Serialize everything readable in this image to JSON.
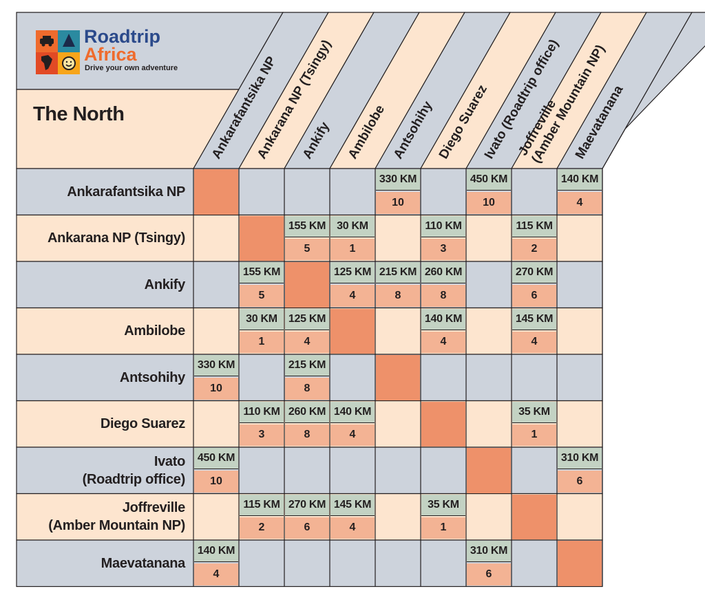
{
  "brand": {
    "name_line1": "Roadtrip",
    "name_line2": "Africa",
    "tagline": "Drive your own adventure",
    "logo_icons": [
      "car-icon",
      "tent-icon",
      "africa-map-icon",
      "smiley-icon"
    ]
  },
  "region_title": "The North",
  "units": {
    "distance_suffix": " KM"
  },
  "locations": [
    {
      "name": "Ankarafantsika NP",
      "row_lines": [
        "Ankarafantsika NP"
      ]
    },
    {
      "name": "Ankarana NP (Tsingy)",
      "row_lines": [
        "Ankarana NP (Tsingy)"
      ]
    },
    {
      "name": "Ankify",
      "row_lines": [
        "Ankify"
      ]
    },
    {
      "name": "Ambilobe",
      "row_lines": [
        "Ambilobe"
      ]
    },
    {
      "name": "Antsohihy",
      "row_lines": [
        "Antsohihy"
      ]
    },
    {
      "name": "Diego Suarez",
      "row_lines": [
        "Diego Suarez"
      ]
    },
    {
      "name": "Ivato (Roadtrip office)",
      "row_lines": [
        "Ivato",
        "(Roadtrip office)"
      ]
    },
    {
      "name": "Joffreville (Amber Mountain NP)",
      "row_lines": [
        "Joffreville",
        "(Amber Mountain NP)"
      ]
    },
    {
      "name": "Maevatanana",
      "row_lines": [
        "Maevatanana"
      ]
    }
  ],
  "column_headers": [
    [
      "Ankarafantsika NP"
    ],
    [
      "Ankarana NP (Tsingy)"
    ],
    [
      "Ankify"
    ],
    [
      "Ambilobe"
    ],
    [
      "Antsohihy"
    ],
    [
      "Diego Suarez"
    ],
    [
      "Ivato (Roadtrip office)"
    ],
    [
      "Joffreville",
      "(Amber Mountain NP)"
    ],
    [
      "Maevatanana"
    ]
  ],
  "routes": [
    {
      "from": 0,
      "to": 4,
      "km": 330,
      "hours": 10
    },
    {
      "from": 0,
      "to": 6,
      "km": 450,
      "hours": 10
    },
    {
      "from": 0,
      "to": 8,
      "km": 140,
      "hours": 4
    },
    {
      "from": 1,
      "to": 2,
      "km": 155,
      "hours": 5
    },
    {
      "from": 1,
      "to": 3,
      "km": 30,
      "hours": 1
    },
    {
      "from": 1,
      "to": 5,
      "km": 110,
      "hours": 3
    },
    {
      "from": 1,
      "to": 7,
      "km": 115,
      "hours": 2
    },
    {
      "from": 2,
      "to": 3,
      "km": 125,
      "hours": 4
    },
    {
      "from": 2,
      "to": 4,
      "km": 215,
      "hours": 8
    },
    {
      "from": 2,
      "to": 5,
      "km": 260,
      "hours": 8
    },
    {
      "from": 2,
      "to": 7,
      "km": 270,
      "hours": 6
    },
    {
      "from": 3,
      "to": 5,
      "km": 140,
      "hours": 4
    },
    {
      "from": 3,
      "to": 7,
      "km": 145,
      "hours": 4
    },
    {
      "from": 5,
      "to": 7,
      "km": 35,
      "hours": 1
    },
    {
      "from": 6,
      "to": 8,
      "km": 310,
      "hours": 6
    }
  ],
  "colors": {
    "row_even": "#cdd3dc",
    "row_odd": "#fde5cf",
    "diagonal": "#ee916a",
    "distance_cell": "#c3d2c3",
    "hours_cell": "#f3b394",
    "logo_blue": "#2b4a8b",
    "logo_orange": "#ef6b2d",
    "text": "#231f20"
  }
}
